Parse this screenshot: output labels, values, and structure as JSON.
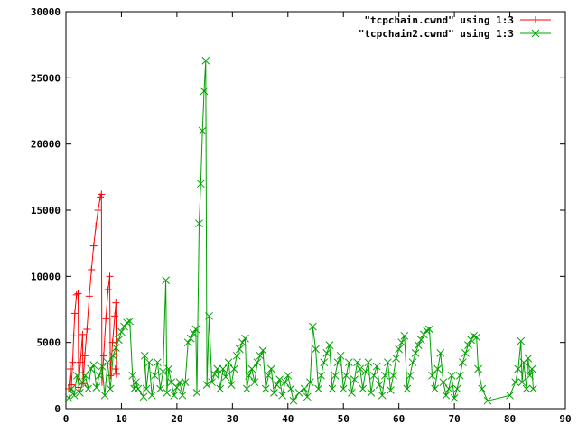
{
  "chart_data": {
    "type": "line",
    "title": "",
    "xlabel": "",
    "ylabel": "",
    "xlim": [
      0,
      90
    ],
    "ylim": [
      0,
      30000
    ],
    "grid": false,
    "legend_position": "top-right",
    "x_ticks": [
      0,
      10,
      20,
      30,
      40,
      50,
      60,
      70,
      80,
      90
    ],
    "y_ticks": [
      0,
      5000,
      10000,
      15000,
      20000,
      25000,
      30000
    ],
    "series": [
      {
        "name": "\"tcpchain.cwnd\" using 1:3",
        "color": "#ff0000",
        "marker": "plus",
        "points": [
          [
            0.5,
            1500
          ],
          [
            0.8,
            3000
          ],
          [
            1.0,
            1800
          ],
          [
            1.2,
            3500
          ],
          [
            1.4,
            5500
          ],
          [
            1.6,
            7200
          ],
          [
            1.9,
            8600
          ],
          [
            2.2,
            8700
          ],
          [
            2.3,
            1600
          ],
          [
            2.6,
            3500
          ],
          [
            3.0,
            5600
          ],
          [
            3.1,
            1900
          ],
          [
            3.4,
            4000
          ],
          [
            3.8,
            6000
          ],
          [
            4.2,
            8500
          ],
          [
            4.6,
            10500
          ],
          [
            5.0,
            12300
          ],
          [
            5.4,
            13800
          ],
          [
            5.8,
            15000
          ],
          [
            6.2,
            16000
          ],
          [
            6.4,
            16200
          ],
          [
            6.5,
            2000
          ],
          [
            6.8,
            4000
          ],
          [
            7.2,
            6800
          ],
          [
            7.6,
            9000
          ],
          [
            7.9,
            10000
          ],
          [
            8.0,
            2500
          ],
          [
            8.4,
            5000
          ],
          [
            8.8,
            7000
          ],
          [
            9.0,
            8000
          ],
          [
            9.1,
            2600
          ],
          [
            8.9,
            3000
          ]
        ]
      },
      {
        "name": "\"tcpchain2.cwnd\" using 1:3",
        "color": "#00a000",
        "marker": "cross",
        "points": [
          [
            0.5,
            800
          ],
          [
            1.0,
            1500
          ],
          [
            1.5,
            1000
          ],
          [
            2.0,
            2500
          ],
          [
            2.5,
            1200
          ],
          [
            3.0,
            2000
          ],
          [
            3.5,
            2500
          ],
          [
            4.0,
            1500
          ],
          [
            4.5,
            3000
          ],
          [
            5.0,
            3300
          ],
          [
            5.5,
            1600
          ],
          [
            6.0,
            2500
          ],
          [
            6.5,
            3200
          ],
          [
            7.0,
            1000
          ],
          [
            7.5,
            3500
          ],
          [
            8.0,
            1500
          ],
          [
            8.5,
            4000
          ],
          [
            9.0,
            4600
          ],
          [
            9.5,
            5200
          ],
          [
            10.0,
            5800
          ],
          [
            10.5,
            6200
          ],
          [
            11.0,
            6500
          ],
          [
            11.5,
            6600
          ],
          [
            12.0,
            2500
          ],
          [
            12.3,
            1500
          ],
          [
            12.6,
            2000
          ],
          [
            13.0,
            1500
          ],
          [
            14.0,
            900
          ],
          [
            14.2,
            4000
          ],
          [
            14.5,
            1500
          ],
          [
            15.0,
            3500
          ],
          [
            15.5,
            1000
          ],
          [
            16.0,
            2500
          ],
          [
            16.5,
            3500
          ],
          [
            17.0,
            1500
          ],
          [
            17.5,
            2800
          ],
          [
            18.0,
            9700
          ],
          [
            18.2,
            1200
          ],
          [
            18.5,
            3000
          ],
          [
            19.0,
            2000
          ],
          [
            19.5,
            1000
          ],
          [
            20.0,
            1600
          ],
          [
            20.5,
            2000
          ],
          [
            21.0,
            1000
          ],
          [
            21.5,
            2000
          ],
          [
            22.0,
            5000
          ],
          [
            22.5,
            5300
          ],
          [
            23.0,
            5700
          ],
          [
            23.4,
            6000
          ],
          [
            23.6,
            1200
          ],
          [
            24.0,
            14000
          ],
          [
            24.3,
            17000
          ],
          [
            24.6,
            21000
          ],
          [
            24.9,
            24000
          ],
          [
            25.2,
            26300
          ],
          [
            25.4,
            1800
          ],
          [
            25.8,
            7000
          ],
          [
            26.3,
            2000
          ],
          [
            26.8,
            2600
          ],
          [
            27.3,
            3000
          ],
          [
            27.8,
            1500
          ],
          [
            28.3,
            3000
          ],
          [
            28.8,
            2400
          ],
          [
            29.3,
            3500
          ],
          [
            29.8,
            1800
          ],
          [
            30.3,
            3000
          ],
          [
            30.8,
            4000
          ],
          [
            31.3,
            4500
          ],
          [
            31.8,
            5000
          ],
          [
            32.3,
            5300
          ],
          [
            32.6,
            1500
          ],
          [
            33.0,
            2500
          ],
          [
            33.5,
            3000
          ],
          [
            34.0,
            2000
          ],
          [
            34.5,
            3500
          ],
          [
            35.0,
            4000
          ],
          [
            35.5,
            4400
          ],
          [
            36.0,
            1500
          ],
          [
            36.5,
            2500
          ],
          [
            37.0,
            3000
          ],
          [
            37.5,
            1200
          ],
          [
            38.0,
            1800
          ],
          [
            38.5,
            2200
          ],
          [
            39.0,
            1000
          ],
          [
            39.5,
            2000
          ],
          [
            40.0,
            2500
          ],
          [
            40.5,
            1500
          ],
          [
            41.0,
            600
          ],
          [
            42.0,
            1200
          ],
          [
            43.0,
            1500
          ],
          [
            43.5,
            900
          ],
          [
            44.0,
            2000
          ],
          [
            44.5,
            6200
          ],
          [
            45.0,
            4500
          ],
          [
            45.5,
            1500
          ],
          [
            46.0,
            2500
          ],
          [
            46.5,
            3500
          ],
          [
            47.0,
            4200
          ],
          [
            47.5,
            4800
          ],
          [
            48.0,
            1500
          ],
          [
            48.5,
            2500
          ],
          [
            49.0,
            3500
          ],
          [
            49.5,
            4000
          ],
          [
            50.0,
            1500
          ],
          [
            50.5,
            2500
          ],
          [
            51.0,
            3500
          ],
          [
            51.5,
            1200
          ],
          [
            52.0,
            2200
          ],
          [
            52.5,
            3500
          ],
          [
            53.0,
            3000
          ],
          [
            53.5,
            1500
          ],
          [
            54.0,
            2800
          ],
          [
            54.5,
            3500
          ],
          [
            55.0,
            1200
          ],
          [
            55.5,
            2500
          ],
          [
            56.0,
            3200
          ],
          [
            56.5,
            1800
          ],
          [
            57.0,
            1000
          ],
          [
            57.5,
            2500
          ],
          [
            58.0,
            3500
          ],
          [
            58.5,
            1400
          ],
          [
            59.0,
            2500
          ],
          [
            59.5,
            3800
          ],
          [
            60.0,
            4500
          ],
          [
            60.5,
            5000
          ],
          [
            61.0,
            5500
          ],
          [
            61.5,
            1500
          ],
          [
            62.0,
            2500
          ],
          [
            62.5,
            3500
          ],
          [
            63.0,
            4200
          ],
          [
            63.5,
            4800
          ],
          [
            64.0,
            5200
          ],
          [
            64.5,
            5600
          ],
          [
            65.0,
            5900
          ],
          [
            65.5,
            6000
          ],
          [
            66.0,
            2500
          ],
          [
            66.5,
            1500
          ],
          [
            67.0,
            3000
          ],
          [
            67.5,
            4200
          ],
          [
            68.0,
            2000
          ],
          [
            68.5,
            1000
          ],
          [
            69.0,
            1500
          ],
          [
            69.5,
            2500
          ],
          [
            70.0,
            800
          ],
          [
            70.5,
            1500
          ],
          [
            71.0,
            2500
          ],
          [
            71.5,
            3500
          ],
          [
            72.0,
            4200
          ],
          [
            72.5,
            4800
          ],
          [
            73.0,
            5200
          ],
          [
            73.5,
            5500
          ],
          [
            74.0,
            5400
          ],
          [
            74.3,
            3000
          ],
          [
            75.0,
            1500
          ],
          [
            76.0,
            600
          ],
          [
            80.0,
            1000
          ],
          [
            81.0,
            2000
          ],
          [
            81.5,
            3000
          ],
          [
            82.0,
            5100
          ],
          [
            82.2,
            2000
          ],
          [
            82.5,
            3500
          ],
          [
            83.0,
            1500
          ],
          [
            83.3,
            3800
          ],
          [
            83.6,
            2500
          ],
          [
            84.0,
            3000
          ],
          [
            84.2,
            1500
          ]
        ]
      }
    ]
  }
}
